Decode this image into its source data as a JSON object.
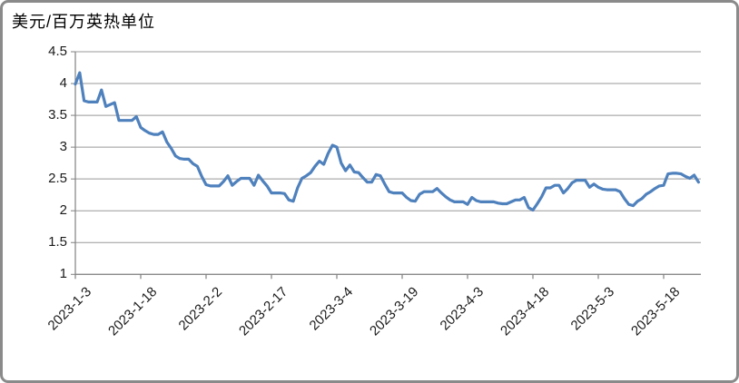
{
  "chart": {
    "title": "美元/百万英热单位",
    "colors": {
      "line": "#4F81BD",
      "gridline": "#999999",
      "axis": "#808080",
      "frame_border": "#8A8A8A",
      "text": "#000000",
      "background": "#FFFFFF"
    }
  },
  "y_axis": {
    "tick_labels": [
      "4.5",
      "4",
      "3.5",
      "3",
      "2.5",
      "2",
      "1.5",
      "1"
    ],
    "tick_values": [
      4.5,
      4,
      3.5,
      3,
      2.5,
      2,
      1.5,
      1
    ]
  },
  "x_axis": {
    "tick_labels": [
      "2023-1-3",
      "2023-1-18",
      "2023-2-2",
      "2023-2-17",
      "2023-3-4",
      "2023-3-19",
      "2023-4-3",
      "2023-4-18",
      "2023-5-3",
      "2023-5-18"
    ],
    "label_interval_days": 15
  },
  "chart_data": {
    "type": "line",
    "title": "美元/百万英热单位",
    "xlabel": "",
    "ylabel": "美元/百万英热单位",
    "ylim": [
      1,
      4.5
    ],
    "grid": true,
    "legend": "none",
    "x": [
      "2023-1-3",
      "2023-1-4",
      "2023-1-5",
      "2023-1-6",
      "2023-1-7",
      "2023-1-8",
      "2023-1-9",
      "2023-1-10",
      "2023-1-11",
      "2023-1-12",
      "2023-1-13",
      "2023-1-14",
      "2023-1-15",
      "2023-1-16",
      "2023-1-17",
      "2023-1-18",
      "2023-1-19",
      "2023-1-20",
      "2023-1-21",
      "2023-1-22",
      "2023-1-23",
      "2023-1-24",
      "2023-1-25",
      "2023-1-26",
      "2023-1-27",
      "2023-1-28",
      "2023-1-29",
      "2023-1-30",
      "2023-1-31",
      "2023-2-1",
      "2023-2-2",
      "2023-2-3",
      "2023-2-4",
      "2023-2-5",
      "2023-2-6",
      "2023-2-7",
      "2023-2-8",
      "2023-2-9",
      "2023-2-10",
      "2023-2-11",
      "2023-2-12",
      "2023-2-13",
      "2023-2-14",
      "2023-2-15",
      "2023-2-16",
      "2023-2-17",
      "2023-2-18",
      "2023-2-19",
      "2023-2-20",
      "2023-2-21",
      "2023-2-22",
      "2023-2-23",
      "2023-2-24",
      "2023-2-25",
      "2023-2-26",
      "2023-2-27",
      "2023-2-28",
      "2023-3-1",
      "2023-3-2",
      "2023-3-3",
      "2023-3-4",
      "2023-3-5",
      "2023-3-6",
      "2023-3-7",
      "2023-3-8",
      "2023-3-9",
      "2023-3-10",
      "2023-3-11",
      "2023-3-12",
      "2023-3-13",
      "2023-3-14",
      "2023-3-15",
      "2023-3-16",
      "2023-3-17",
      "2023-3-18",
      "2023-3-19",
      "2023-3-20",
      "2023-3-21",
      "2023-3-22",
      "2023-3-23",
      "2023-3-24",
      "2023-3-25",
      "2023-3-26",
      "2023-3-27",
      "2023-3-28",
      "2023-3-29",
      "2023-3-30",
      "2023-3-31",
      "2023-4-1",
      "2023-4-2",
      "2023-4-3",
      "2023-4-4",
      "2023-4-5",
      "2023-4-6",
      "2023-4-7",
      "2023-4-8",
      "2023-4-9",
      "2023-4-10",
      "2023-4-11",
      "2023-4-12",
      "2023-4-13",
      "2023-4-14",
      "2023-4-15",
      "2023-4-16",
      "2023-4-17",
      "2023-4-18",
      "2023-4-19",
      "2023-4-20",
      "2023-4-21",
      "2023-4-22",
      "2023-4-23",
      "2023-4-24",
      "2023-4-25",
      "2023-4-26",
      "2023-4-27",
      "2023-4-28",
      "2023-4-29",
      "2023-4-30",
      "2023-5-1",
      "2023-5-2",
      "2023-5-3",
      "2023-5-4",
      "2023-5-5",
      "2023-5-6",
      "2023-5-7",
      "2023-5-8",
      "2023-5-9",
      "2023-5-10",
      "2023-5-11",
      "2023-5-12",
      "2023-5-13",
      "2023-5-14",
      "2023-5-15",
      "2023-5-16",
      "2023-5-17",
      "2023-5-18",
      "2023-5-19",
      "2023-5-20",
      "2023-5-21",
      "2023-5-22",
      "2023-5-23",
      "2023-5-24",
      "2023-5-25",
      "2023-5-26"
    ],
    "values": [
      3.99,
      4.17,
      3.73,
      3.71,
      3.71,
      3.71,
      3.9,
      3.64,
      3.67,
      3.7,
      3.42,
      3.42,
      3.42,
      3.42,
      3.48,
      3.31,
      3.26,
      3.22,
      3.2,
      3.2,
      3.24,
      3.08,
      2.98,
      2.86,
      2.82,
      2.81,
      2.81,
      2.74,
      2.7,
      2.54,
      2.41,
      2.39,
      2.39,
      2.39,
      2.46,
      2.55,
      2.4,
      2.46,
      2.51,
      2.51,
      2.51,
      2.4,
      2.56,
      2.47,
      2.39,
      2.28,
      2.28,
      2.28,
      2.27,
      2.17,
      2.15,
      2.36,
      2.51,
      2.55,
      2.6,
      2.7,
      2.78,
      2.73,
      2.9,
      3.03,
      3.0,
      2.75,
      2.63,
      2.72,
      2.61,
      2.6,
      2.52,
      2.45,
      2.45,
      2.57,
      2.55,
      2.42,
      2.3,
      2.28,
      2.28,
      2.28,
      2.21,
      2.16,
      2.15,
      2.26,
      2.3,
      2.3,
      2.3,
      2.35,
      2.28,
      2.22,
      2.17,
      2.14,
      2.14,
      2.14,
      2.1,
      2.21,
      2.16,
      2.14,
      2.14,
      2.14,
      2.14,
      2.12,
      2.11,
      2.11,
      2.14,
      2.17,
      2.17,
      2.21,
      2.05,
      2.01,
      2.11,
      2.22,
      2.36,
      2.36,
      2.4,
      2.4,
      2.28,
      2.35,
      2.44,
      2.48,
      2.48,
      2.48,
      2.37,
      2.42,
      2.37,
      2.34,
      2.33,
      2.33,
      2.33,
      2.3,
      2.19,
      2.1,
      2.08,
      2.15,
      2.19,
      2.26,
      2.3,
      2.35,
      2.39,
      2.4,
      2.58,
      2.59,
      2.59,
      2.58,
      2.54,
      2.51,
      2.56,
      2.45
    ]
  }
}
